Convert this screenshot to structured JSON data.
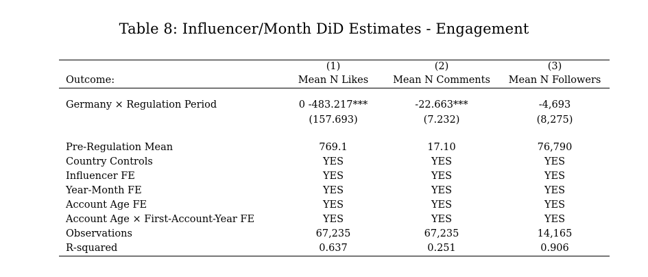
{
  "caption": "Table 8: Influencer/Month DiD Estimates - Engagement",
  "header": {
    "numbers": [
      "(1)",
      "(2)",
      "(3)"
    ],
    "outcome_label": "Outcome:",
    "columns": [
      "Mean N Likes",
      "Mean N Comments",
      "Mean N Followers"
    ]
  },
  "estimate": {
    "label": "Germany × Regulation Period",
    "coefs": [
      "0 -483.217***",
      "-22.663***",
      "-4,693"
    ],
    "ses": [
      "(157.693)",
      "(7.232)",
      "(8,275)"
    ]
  },
  "stats": [
    {
      "label": "Pre-Regulation Mean",
      "values": [
        "769.1",
        "17.10",
        "76,790"
      ]
    },
    {
      "label": "Country Controls",
      "values": [
        "YES",
        "YES",
        "YES"
      ]
    },
    {
      "label": "Influencer FE",
      "values": [
        "YES",
        "YES",
        "YES"
      ]
    },
    {
      "label": "Year-Month FE",
      "values": [
        "YES",
        "YES",
        "YES"
      ]
    },
    {
      "label": "Account Age FE",
      "values": [
        "YES",
        "YES",
        "YES"
      ]
    },
    {
      "label": "Account Age × First-Account-Year FE",
      "values": [
        "YES",
        "YES",
        "YES"
      ]
    },
    {
      "label": "Observations",
      "values": [
        "67,235",
        "67,235",
        "14,165"
      ]
    },
    {
      "label": "R-squared",
      "values": [
        "0.637",
        "0.251",
        "0.906"
      ]
    }
  ]
}
